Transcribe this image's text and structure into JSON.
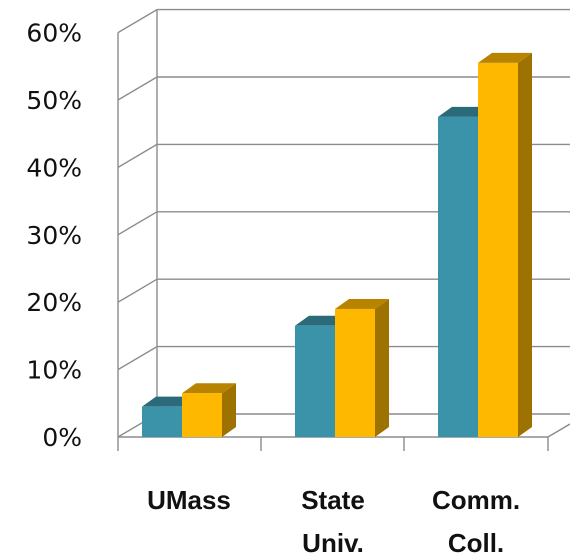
{
  "chart_data": {
    "type": "bar",
    "title": "",
    "xlabel": "",
    "ylabel": "",
    "categories": [
      "UMass",
      "State Univ.",
      "Comm. Coll."
    ],
    "category_lines": [
      [
        "UMass"
      ],
      [
        "State",
        "Univ."
      ],
      [
        "Comm.",
        "Coll."
      ]
    ],
    "series": [
      {
        "values": [
          4.5,
          16.5,
          47.5
        ],
        "color": "#3a93a8"
      },
      {
        "values": [
          6.5,
          19.0,
          55.5
        ],
        "color": "#ffb800"
      }
    ],
    "ylim": [
      0,
      60
    ],
    "yticks": [
      0,
      10,
      20,
      30,
      40,
      50,
      60
    ],
    "ytick_labels": [
      "0%",
      "10%",
      "20%",
      "30%",
      "40%",
      "50%",
      "60%"
    ],
    "grid": true,
    "legend": "none",
    "style": "3d-clustered-column"
  }
}
